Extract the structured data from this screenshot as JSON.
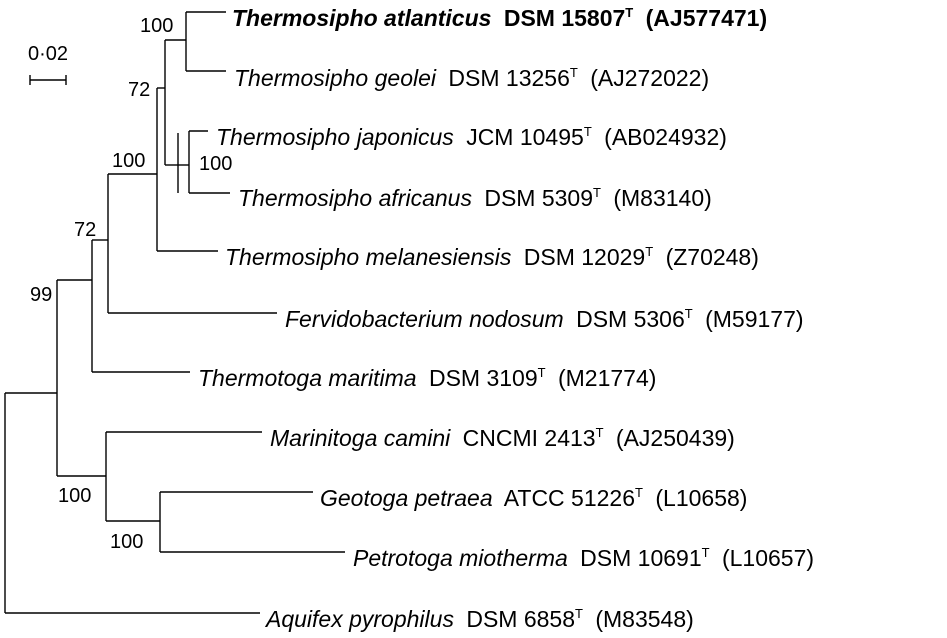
{
  "scale_bar": {
    "label": "0·02"
  },
  "taxa": [
    {
      "genus_species": "Thermosipho atlanticus",
      "strain": "DSM 15807",
      "type_mark": "T",
      "accession": "(AJ577471)",
      "bold": true
    },
    {
      "genus_species": "Thermosipho geolei",
      "strain": "DSM 13256",
      "type_mark": "T",
      "accession": "(AJ272022)",
      "bold": false
    },
    {
      "genus_species": "Thermosipho japonicus",
      "strain": "JCM 10495",
      "type_mark": "T",
      "accession": "(AB024932)",
      "bold": false
    },
    {
      "genus_species": "Thermosipho africanus",
      "strain": "DSM 5309",
      "type_mark": "T",
      "accession": "(M83140)",
      "bold": false
    },
    {
      "genus_species": "Thermosipho melanesiensis",
      "strain": "DSM 12029",
      "type_mark": "T",
      "accession": "(Z70248)",
      "bold": false
    },
    {
      "genus_species": "Fervidobacterium nodosum",
      "strain": "DSM 5306",
      "type_mark": "T",
      "accession": "(M59177)",
      "bold": false
    },
    {
      "genus_species": "Thermotoga maritima",
      "strain": "DSM 3109",
      "type_mark": "T",
      "accession": "(M21774)",
      "bold": false
    },
    {
      "genus_species": "Marinitoga camini",
      "strain": "CNCMI 2413",
      "type_mark": "T",
      "accession": "(AJ250439)",
      "bold": false
    },
    {
      "genus_species": "Geotoga petraea",
      "strain": "ATCC 51226",
      "type_mark": "T",
      "accession": "(L10658)",
      "bold": false
    },
    {
      "genus_species": "Petrotoga miotherma",
      "strain": "DSM 10691",
      "type_mark": "T",
      "accession": "(L10657)",
      "bold": false
    },
    {
      "genus_species": "Aquifex pyrophilus",
      "strain": "DSM 6858",
      "type_mark": "T",
      "accession": "(M83548)",
      "bold": false
    }
  ],
  "supports": {
    "atlanticus_geolei": "100",
    "geolei_upper": "72",
    "japonicus_africanus": "100",
    "thermosipho_clade": "100",
    "fervidobacterium": "72",
    "thermotogaceae": "99",
    "marinitoga_group": "100",
    "geotoga_petrotoga": "100"
  }
}
